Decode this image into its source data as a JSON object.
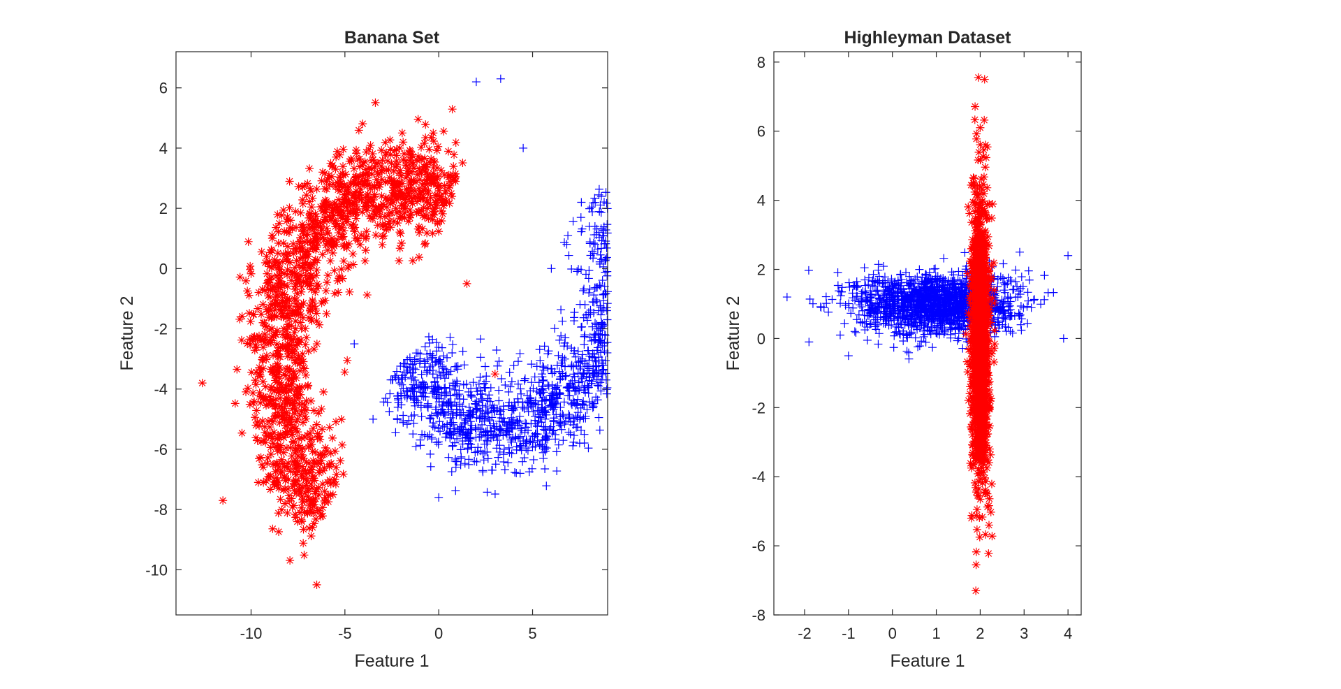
{
  "chart_data": [
    {
      "type": "scatter",
      "title": "Banana Set",
      "xlabel": "Feature 1",
      "ylabel": "Feature 2",
      "xlim": [
        -14,
        9
      ],
      "ylim": [
        -11.5,
        7.2
      ],
      "xticks": [
        "-10",
        "-5",
        "0",
        "5"
      ],
      "yticks": [
        "6",
        "4",
        "2",
        "0",
        "-2",
        "-4",
        "-6",
        "-8",
        "-10"
      ],
      "grid": false,
      "legend": "none",
      "series": [
        {
          "marker": "asterisk",
          "color": "#ff0000",
          "shape": "banana arc",
          "count": 1500,
          "sample_points": [
            [
              -12.6,
              -3.8
            ],
            [
              -8.5,
              1.5
            ],
            [
              -5.5,
              3.3
            ],
            [
              -3.0,
              3.6
            ],
            [
              -0.2,
              2.0
            ],
            [
              1.5,
              -0.5
            ],
            [
              3.0,
              -3.5
            ],
            [
              -8.0,
              -7.0
            ],
            [
              -6.5,
              -10.5
            ],
            [
              -11.5,
              -7.7
            ]
          ]
        },
        {
          "marker": "plus",
          "color": "#0000ff",
          "shape": "banana arc",
          "count": 1500,
          "sample_points": [
            [
              3.3,
              6.3
            ],
            [
              2.0,
              6.2
            ],
            [
              4.5,
              4.0
            ],
            [
              7.6,
              2.2
            ],
            [
              6.0,
              0.0
            ],
            [
              5.5,
              -3.5
            ],
            [
              3.0,
              -5.5
            ],
            [
              0.0,
              -7.6
            ],
            [
              -3.5,
              -5.0
            ],
            [
              -4.5,
              -2.5
            ]
          ]
        }
      ]
    },
    {
      "type": "scatter",
      "title": "Highleyman Dataset",
      "xlabel": "Feature 1",
      "ylabel": "Feature 2",
      "xlim": [
        -2.7,
        4.3
      ],
      "ylim": [
        -8,
        8.3
      ],
      "xticks": [
        "-2",
        "-1",
        "0",
        "1",
        "2",
        "3",
        "4"
      ],
      "yticks": [
        "8",
        "6",
        "4",
        "2",
        "0",
        "-2",
        "-4",
        "-6",
        "-8"
      ],
      "grid": false,
      "legend": "none",
      "series": [
        {
          "marker": "plus",
          "color": "#0000ff",
          "distribution": {
            "mean": [
              1,
              1
            ],
            "std": [
              0.9,
              0.45
            ]
          },
          "count": 1500,
          "sample_points": [
            [
              -2.4,
              1.2
            ],
            [
              -1.9,
              -0.1
            ],
            [
              4.0,
              2.4
            ],
            [
              3.9,
              0.0
            ],
            [
              -1.0,
              -0.5
            ],
            [
              2.9,
              2.5
            ]
          ]
        },
        {
          "marker": "asterisk",
          "color": "#ff0000",
          "distribution": {
            "mean": [
              2,
              0
            ],
            "std": [
              0.1,
              2.0
            ]
          },
          "count": 1500,
          "sample_points": [
            [
              2.1,
              7.5
            ],
            [
              1.9,
              -7.3
            ],
            [
              2.0,
              6.1
            ],
            [
              1.8,
              -5.2
            ],
            [
              2.2,
              -5.4
            ]
          ]
        }
      ]
    }
  ]
}
